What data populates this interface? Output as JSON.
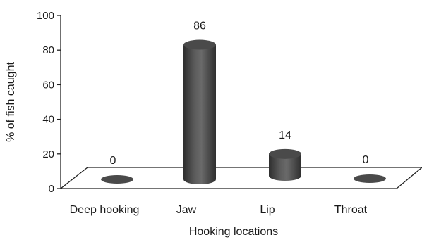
{
  "chart_data": {
    "type": "bar",
    "categories": [
      "Deep hooking",
      "Jaw",
      "Lip",
      "Throat"
    ],
    "values": [
      0,
      86,
      14,
      0
    ],
    "data_labels": [
      "0",
      "86",
      "14",
      "0"
    ],
    "xlabel": "Hooking locations",
    "ylabel": "% of fish caught",
    "ylim": [
      0,
      100
    ],
    "yticks": [
      "0",
      "20",
      "40",
      "60",
      "80",
      "100"
    ],
    "grid": false,
    "legend": "none",
    "bar_style": "3d-cylinder",
    "colors": {
      "bar": "#555555",
      "bar_dark": "#2e2e2e",
      "bar_light": "#8a8a8a",
      "top": "#4a4a4a",
      "axis": "#222222"
    }
  }
}
